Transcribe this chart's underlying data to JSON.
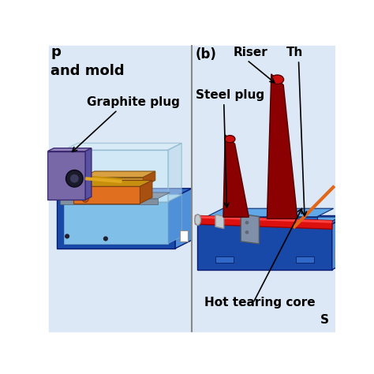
{
  "bg_color": "#e8f0f8",
  "panel_a_bg": "#dce8f5",
  "panel_b_bg": "#dce8f5",
  "divider_color": "#888888",
  "labels": {
    "a_p": "p",
    "a_mold": "and mold",
    "a_graphite": "Graphite plug",
    "b_label": "(b)",
    "b_riser": "Riser",
    "b_th": "Th",
    "b_steel": "Steel plug",
    "b_hot": "Hot tearing core",
    "b_s": "S"
  },
  "colors": {
    "blue_dark": "#1848a8",
    "blue_mid": "#3068c8",
    "blue_light": "#5090d8",
    "blue_top": "#60a8e8",
    "blue_inner": "#80c0e8",
    "blue_very_light": "#a8d8f0",
    "glass": "#c8e8f8",
    "glass_edge": "#80b0c8",
    "purple_front": "#7868a8",
    "purple_top": "#9888c0",
    "purple_side": "#5850a0",
    "orange_front": "#e07020",
    "orange_top": "#c89010",
    "orange_side": "#a85010",
    "tan_front": "#c89030",
    "tan_top": "#d8a040",
    "red_pipe": "#dd1010",
    "red_pipe_light": "#ff4040",
    "red_pipe_dark": "#990000",
    "cone_dark": "#8b0000",
    "cone_red": "#cc1010",
    "silver": "#c0c8d0",
    "silver_dark": "#909090",
    "bracket": "#8090a8",
    "orange_line": "#e06818"
  }
}
